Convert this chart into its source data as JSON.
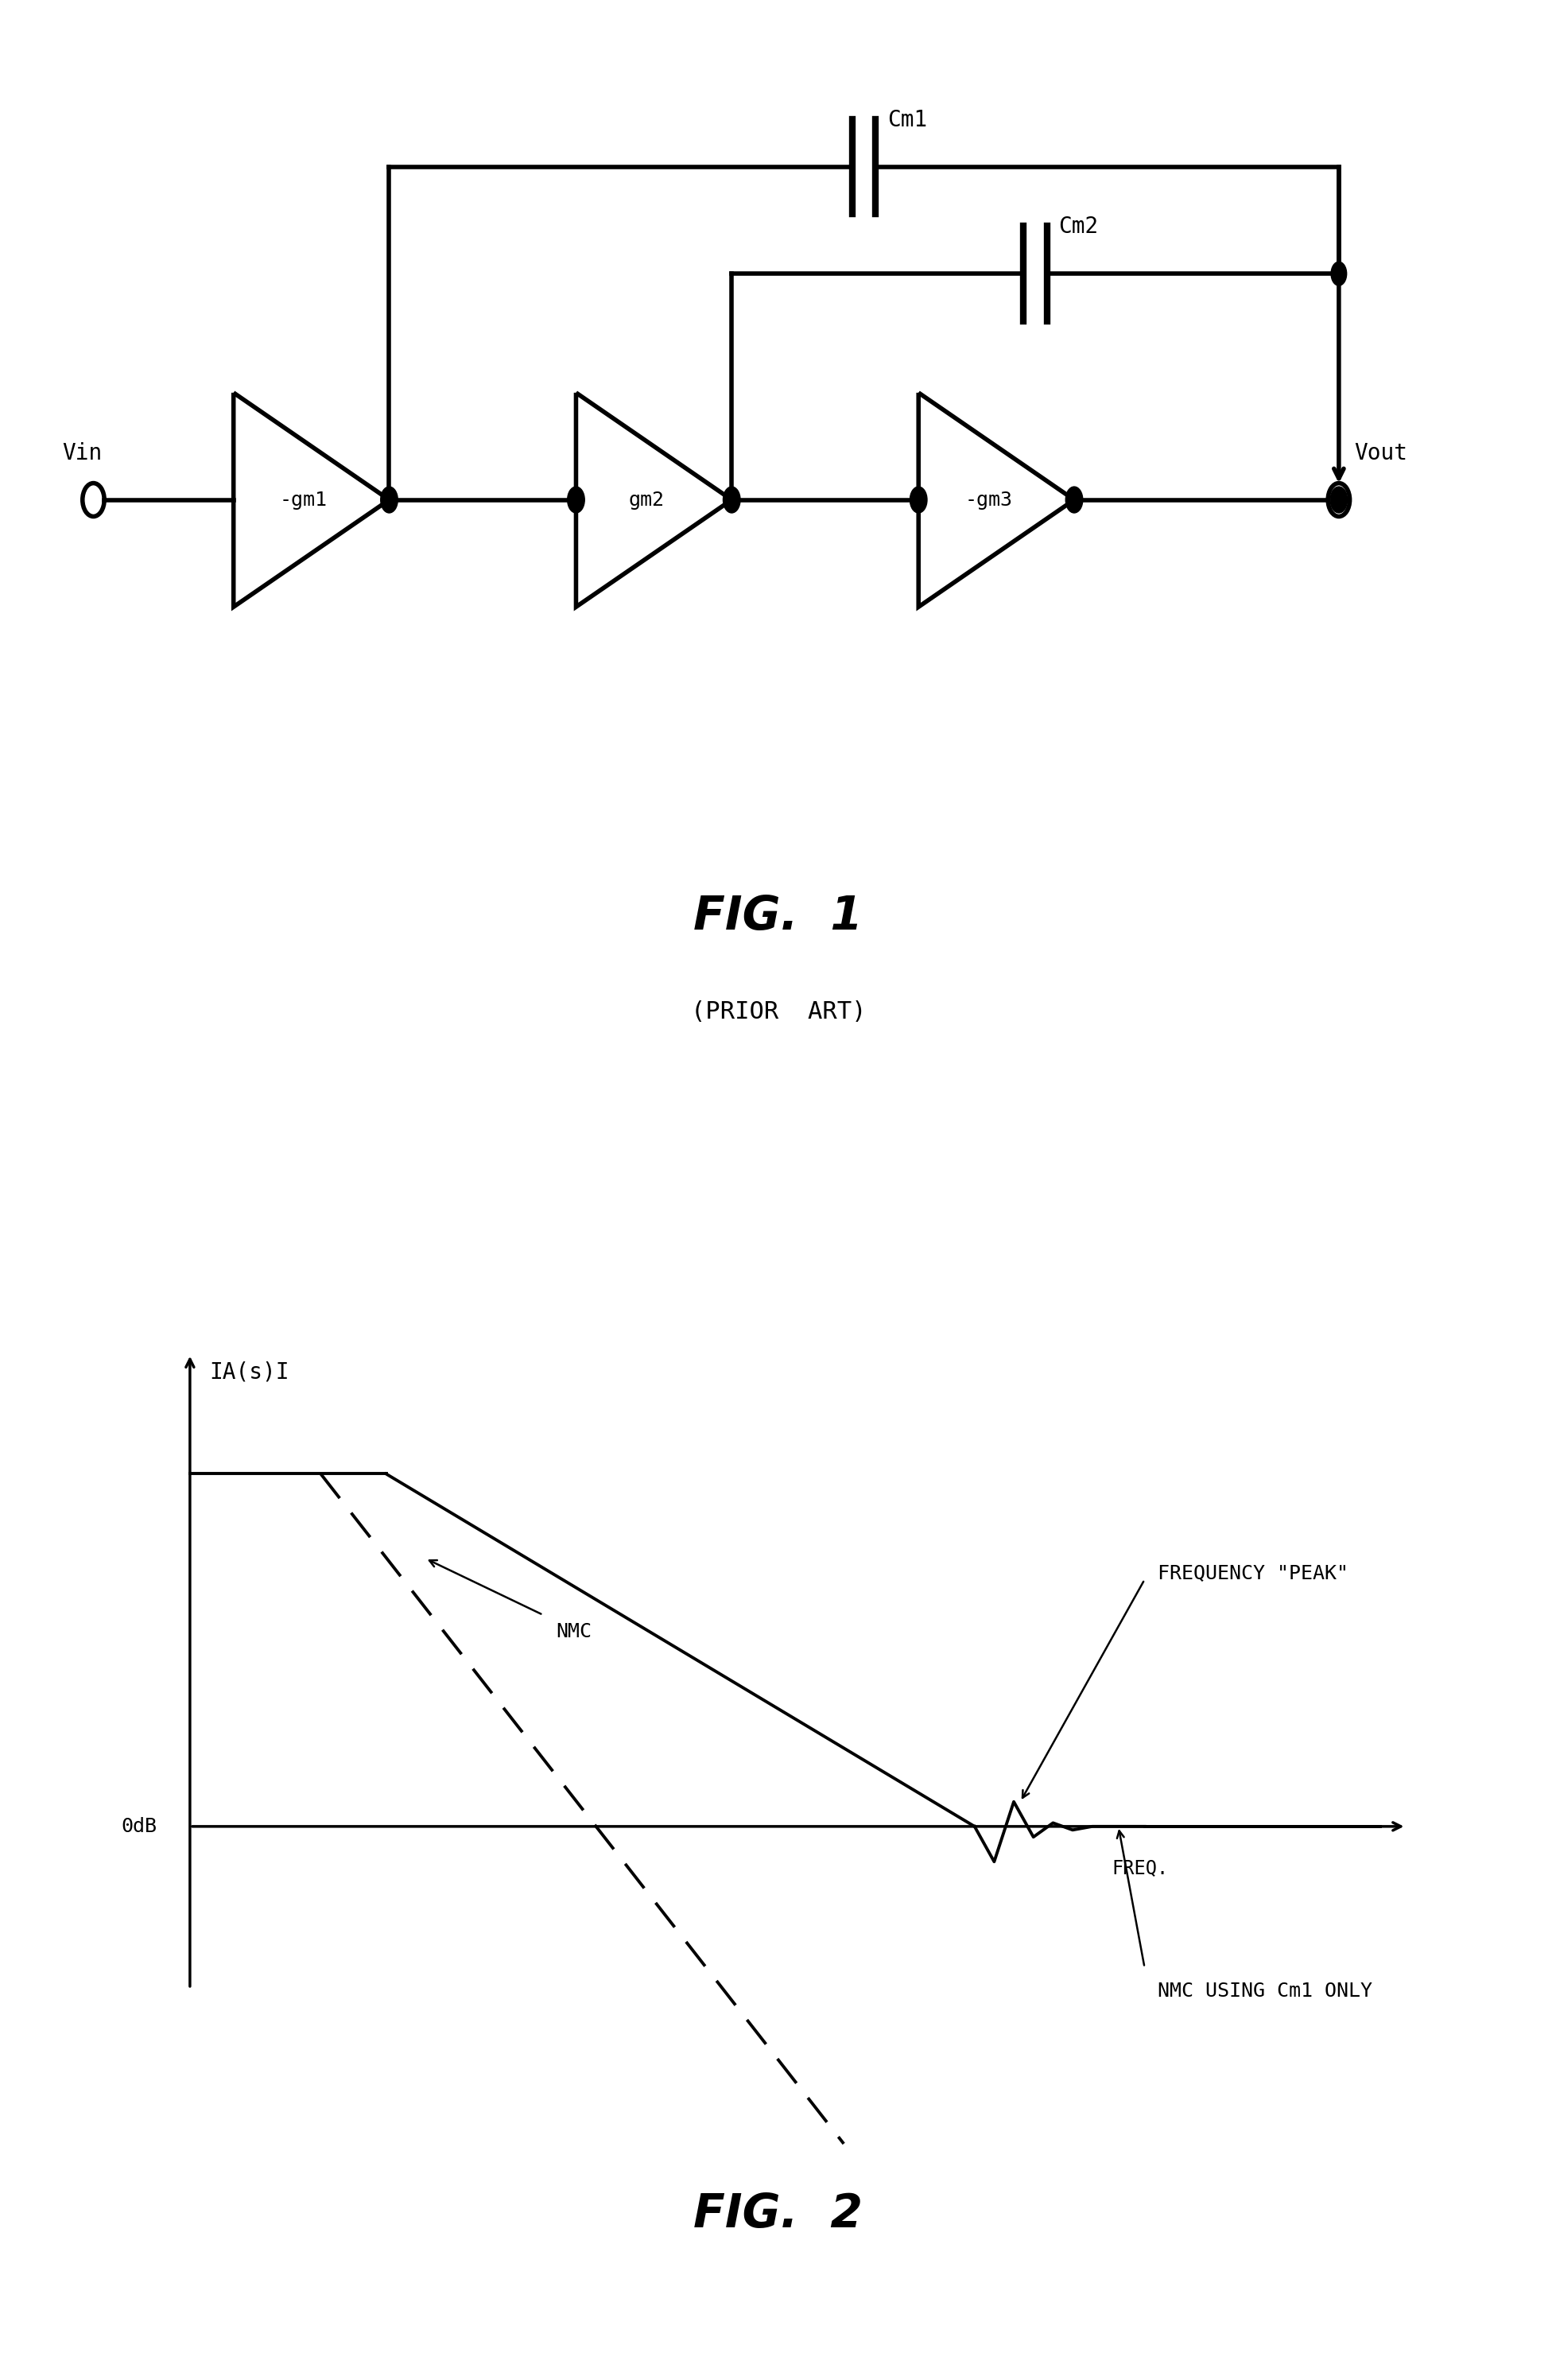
{
  "fig_width": 19.58,
  "fig_height": 29.93,
  "bg_color": "#ffffff",
  "fig1": {
    "title": "FIG.  1",
    "subtitle": "(PRIOR  ART)",
    "title_fontsize": 42,
    "subtitle_fontsize": 22,
    "vin_label": "Vin",
    "vout_label": "Vout",
    "gm1_label": "-gm1",
    "gm2_label": "gm2",
    "gm3_label": "-gm3",
    "cm1_label": "Cm1",
    "cm2_label": "Cm2"
  },
  "fig2": {
    "title": "FIG.  2",
    "title_fontsize": 42,
    "ylabel": "IA(s)I",
    "xlabel": "FREQ.",
    "odb_label": "0dB",
    "nmc_label": "NMC",
    "freq_peak_label": "FREQUENCY \"PEAK\"",
    "nmc_cm1_label": "NMC USING Cm1 ONLY"
  }
}
